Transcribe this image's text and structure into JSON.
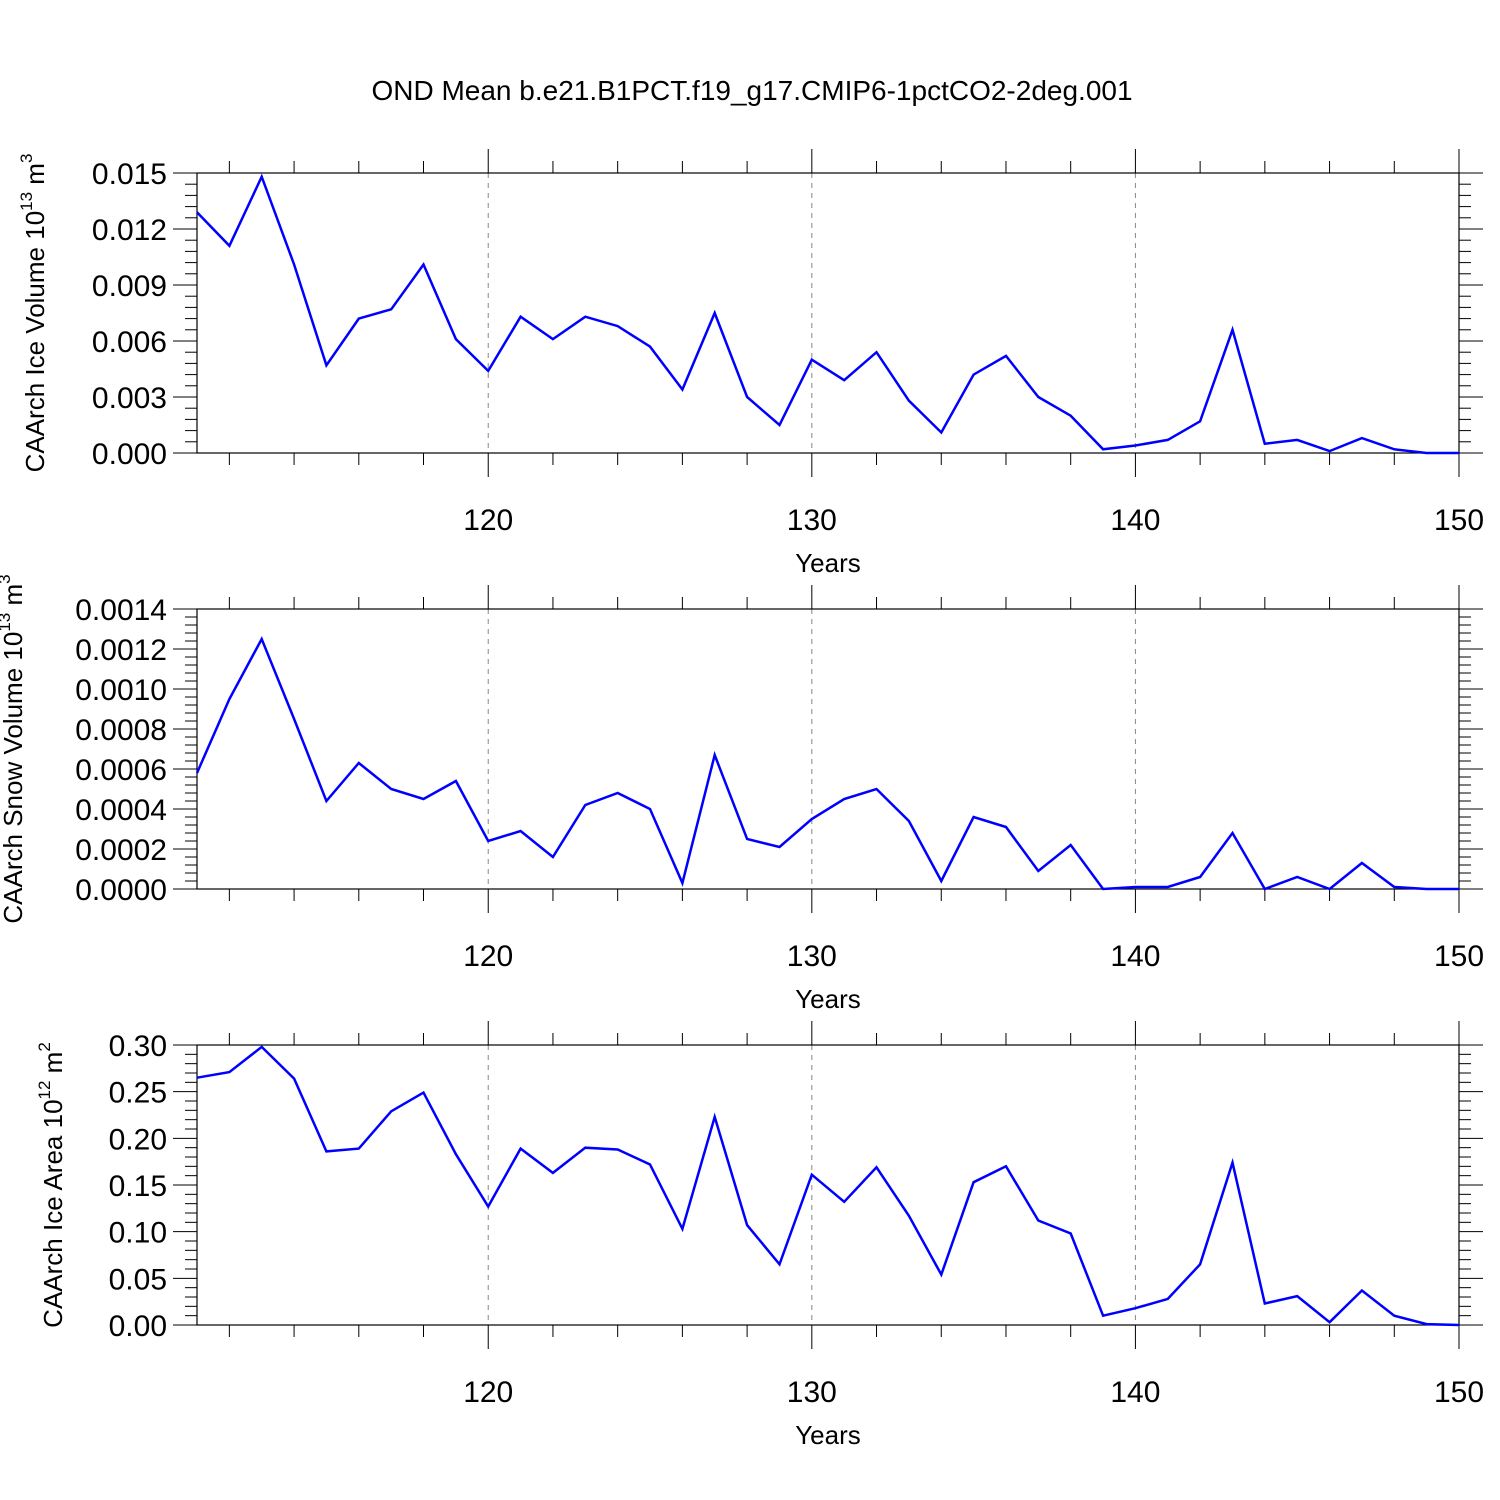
{
  "title": "OND Mean b.e21.B1PCT.f19_g17.CMIP6-1pctCO2-2deg.001",
  "line_color": "#0000ff",
  "chart_data": [
    {
      "type": "line",
      "ylabel": "CAArch Ice Volume 10",
      "ylabel_exp": "13",
      "ylabel_unit": " m",
      "ylabel_unit_exp": "3",
      "xlabel": "Years",
      "xlim": [
        111,
        150
      ],
      "ylim": [
        0,
        0.015
      ],
      "xticks": [
        "120",
        "130",
        "140",
        "150"
      ],
      "yticks": [
        "0.000",
        "0.003",
        "0.006",
        "0.009",
        "0.012",
        "0.015"
      ],
      "x": [
        111,
        112,
        113,
        114,
        115,
        116,
        117,
        118,
        119,
        120,
        121,
        122,
        123,
        124,
        125,
        126,
        127,
        128,
        129,
        130,
        131,
        132,
        133,
        134,
        135,
        136,
        137,
        138,
        139,
        140,
        141,
        142,
        143,
        144,
        145,
        146,
        147,
        148,
        149,
        150
      ],
      "y": [
        0.0129,
        0.0111,
        0.0148,
        0.0101,
        0.0047,
        0.0072,
        0.0077,
        0.0101,
        0.0061,
        0.0044,
        0.0073,
        0.0061,
        0.0073,
        0.0068,
        0.0057,
        0.0034,
        0.0075,
        0.003,
        0.0015,
        0.005,
        0.0039,
        0.0054,
        0.0028,
        0.0011,
        0.0042,
        0.0052,
        0.003,
        0.002,
        0.0002,
        0.0004,
        0.0007,
        0.0017,
        0.0066,
        0.0005,
        0.0007,
        0.0001,
        0.0008,
        0.0002,
        0.0,
        0.0
      ]
    },
    {
      "type": "line",
      "ylabel": "CAArch Snow Volume 10",
      "ylabel_exp": "13",
      "ylabel_unit": " m",
      "ylabel_unit_exp": "3",
      "xlabel": "Years",
      "xlim": [
        111,
        150
      ],
      "ylim": [
        0,
        0.0014
      ],
      "xticks": [
        "120",
        "130",
        "140",
        "150"
      ],
      "yticks": [
        "0.0000",
        "0.0002",
        "0.0004",
        "0.0006",
        "0.0008",
        "0.0010",
        "0.0012",
        "0.0014"
      ],
      "x": [
        111,
        112,
        113,
        114,
        115,
        116,
        117,
        118,
        119,
        120,
        121,
        122,
        123,
        124,
        125,
        126,
        127,
        128,
        129,
        130,
        131,
        132,
        133,
        134,
        135,
        136,
        137,
        138,
        139,
        140,
        141,
        142,
        143,
        144,
        145,
        146,
        147,
        148,
        149,
        150
      ],
      "y": [
        0.00058,
        0.00095,
        0.00125,
        0.00085,
        0.00044,
        0.00063,
        0.0005,
        0.00045,
        0.00054,
        0.00024,
        0.00029,
        0.00016,
        0.00042,
        0.00048,
        0.0004,
        3e-05,
        0.00067,
        0.00025,
        0.00021,
        0.00035,
        0.00045,
        0.0005,
        0.00034,
        4e-05,
        0.00036,
        0.00031,
        9e-05,
        0.00022,
        0.0,
        1e-05,
        1e-05,
        6e-05,
        0.00028,
        0.0,
        6e-05,
        0.0,
        0.00013,
        1e-05,
        0.0,
        0.0
      ]
    },
    {
      "type": "line",
      "ylabel": "CAArch Ice Area 10",
      "ylabel_exp": "12",
      "ylabel_unit": " m",
      "ylabel_unit_exp": "2",
      "xlabel": "Years",
      "xlim": [
        111,
        150
      ],
      "ylim": [
        0,
        0.3
      ],
      "xticks": [
        "120",
        "130",
        "140",
        "150"
      ],
      "yticks": [
        "0.00",
        "0.05",
        "0.10",
        "0.15",
        "0.20",
        "0.25",
        "0.30"
      ],
      "x": [
        111,
        112,
        113,
        114,
        115,
        116,
        117,
        118,
        119,
        120,
        121,
        122,
        123,
        124,
        125,
        126,
        127,
        128,
        129,
        130,
        131,
        132,
        133,
        134,
        135,
        136,
        137,
        138,
        139,
        140,
        141,
        142,
        143,
        144,
        145,
        146,
        147,
        148,
        149,
        150
      ],
      "y": [
        0.265,
        0.271,
        0.298,
        0.264,
        0.186,
        0.189,
        0.229,
        0.249,
        0.183,
        0.127,
        0.189,
        0.163,
        0.19,
        0.188,
        0.172,
        0.103,
        0.223,
        0.107,
        0.065,
        0.161,
        0.132,
        0.169,
        0.117,
        0.054,
        0.153,
        0.17,
        0.112,
        0.098,
        0.01,
        0.018,
        0.028,
        0.065,
        0.174,
        0.023,
        0.031,
        0.003,
        0.037,
        0.01,
        0.001,
        0.0
      ]
    }
  ]
}
